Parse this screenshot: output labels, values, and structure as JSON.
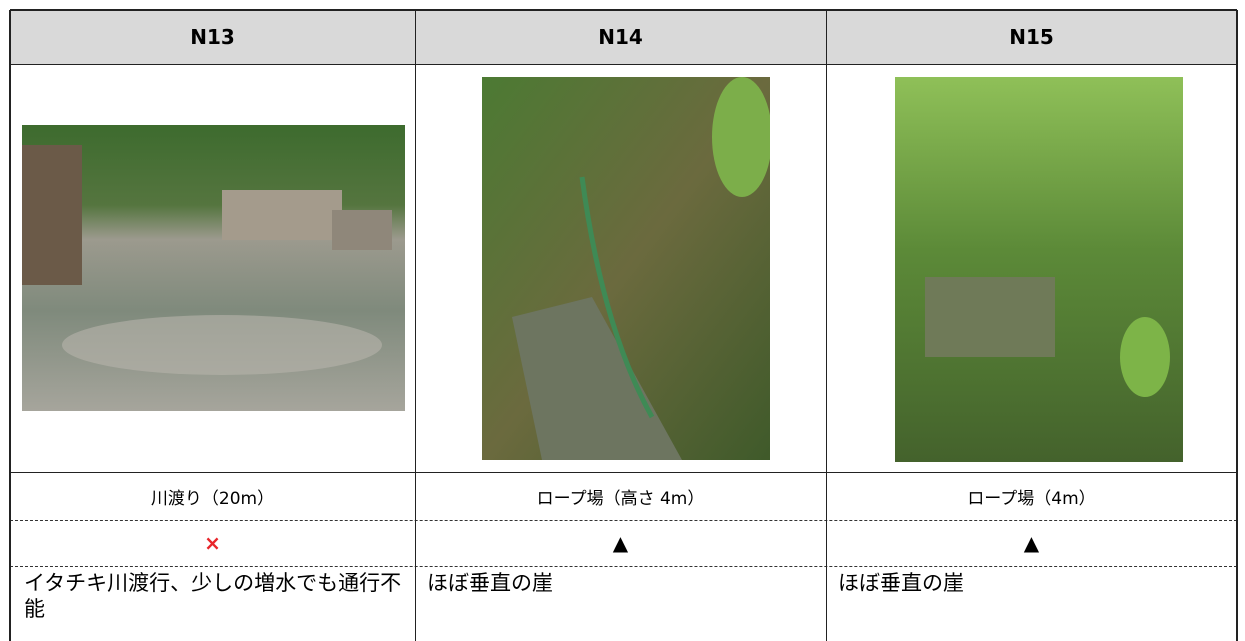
{
  "table": {
    "headers": [
      "N13",
      "N14",
      "N15"
    ],
    "captions": [
      "川渡り（20m）",
      "ロープ場（高さ 4m）",
      "ロープ場（4m）"
    ],
    "marks": [
      "×",
      "▲",
      "▲"
    ],
    "notes": [
      "イタチキ川渡行、少しの増水でも通行不能",
      "ほぼ垂直の崖",
      "ほぼ垂直の崖"
    ]
  }
}
